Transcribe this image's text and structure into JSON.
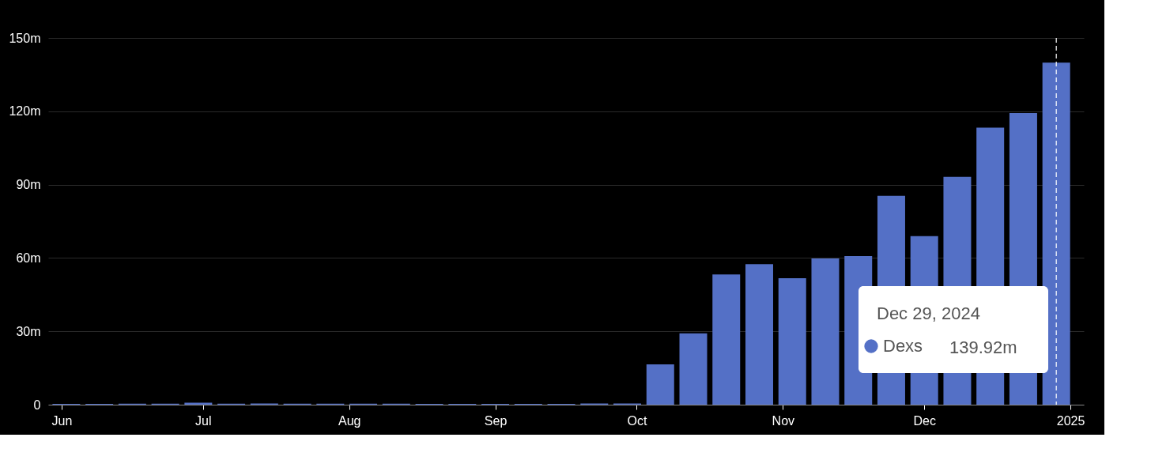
{
  "chart_data": {
    "type": "bar",
    "x": [
      "2024-06-02",
      "2024-06-09",
      "2024-06-16",
      "2024-06-23",
      "2024-06-30",
      "2024-07-07",
      "2024-07-14",
      "2024-07-21",
      "2024-07-28",
      "2024-08-04",
      "2024-08-11",
      "2024-08-18",
      "2024-08-25",
      "2024-09-01",
      "2024-09-08",
      "2024-09-15",
      "2024-09-22",
      "2024-09-29",
      "2024-10-06",
      "2024-10-13",
      "2024-10-20",
      "2024-10-27",
      "2024-11-03",
      "2024-11-10",
      "2024-11-17",
      "2024-11-24",
      "2024-12-01",
      "2024-12-08",
      "2024-12-15",
      "2024-12-22",
      "2024-12-29"
    ],
    "series": [
      {
        "name": "Dexs",
        "color": "#5470c6",
        "values": [
          0.3,
          0.3,
          0.4,
          0.4,
          0.8,
          0.4,
          0.5,
          0.4,
          0.4,
          0.4,
          0.4,
          0.3,
          0.3,
          0.3,
          0.3,
          0.3,
          0.5,
          0.5,
          16.5,
          29.2,
          53.3,
          57.5,
          51.7,
          59.8,
          60.8,
          85.4,
          68.9,
          93.2,
          113.3,
          119.3,
          139.92
        ]
      }
    ],
    "value_labels": [
      null,
      null,
      null,
      null,
      null,
      null,
      null,
      null,
      null,
      null,
      null,
      null,
      null,
      null,
      null,
      null,
      null,
      null,
      null,
      null,
      null,
      null,
      null,
      null,
      null,
      null,
      null,
      null,
      null,
      null,
      "139.92m"
    ],
    "annotations": [
      "Dec 29, 2024"
    ],
    "ylim": [
      0,
      150
    ],
    "yticks": [
      0,
      {
        "value": 30,
        "label": "30m"
      },
      {
        "value": 60,
        "label": "60m"
      },
      {
        "value": 90,
        "label": "90m"
      },
      {
        "value": 120,
        "label": "120m"
      },
      {
        "value": 150,
        "label": "150m"
      }
    ],
    "xlim": [
      "2024-05-30",
      "2025-01-03"
    ],
    "xticks": [
      {
        "value": "2024-06-01",
        "label": "Jun"
      },
      {
        "value": "2024-07-01",
        "label": "Jul"
      },
      {
        "value": "2024-08-01",
        "label": "Aug"
      },
      {
        "value": "2024-09-01",
        "label": "Sep"
      },
      {
        "value": "2024-10-01",
        "label": "Oct"
      },
      {
        "value": "2024-11-01",
        "label": "Nov"
      },
      {
        "value": "2024-12-01",
        "label": "Dec"
      },
      {
        "value": "2025-01-01",
        "label": "2025"
      }
    ],
    "ref_lines": [
      {
        "axis": "x",
        "value": "2024-12-29",
        "color": "#ffffff",
        "line_style": "dashed"
      }
    ],
    "grid": "y",
    "legend": "bottom right"
  }
}
